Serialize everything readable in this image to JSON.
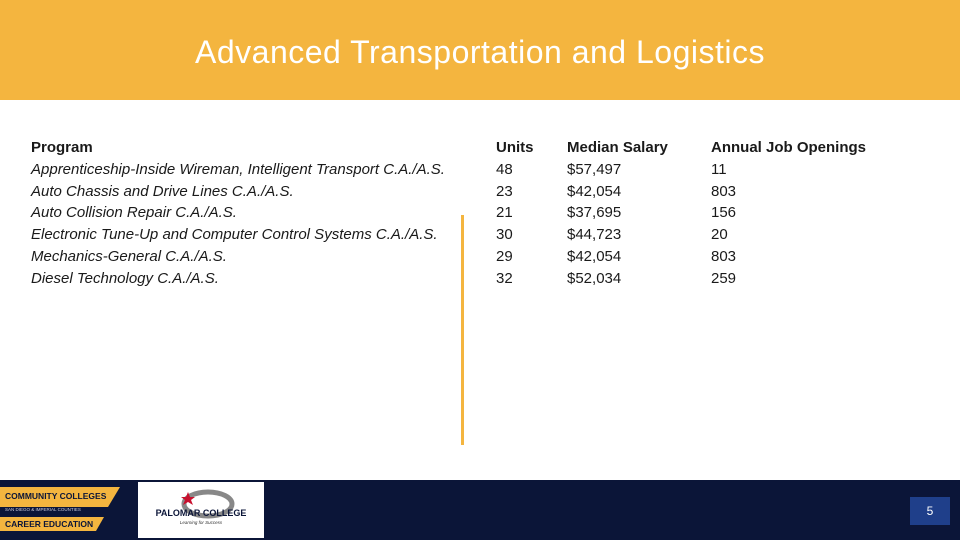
{
  "header": {
    "title": "Advanced Transportation and Logistics"
  },
  "table": {
    "columns": [
      "Program",
      "Units",
      "Median Salary",
      "Annual Job Openings"
    ],
    "rows": [
      [
        "Apprenticeship-Inside Wireman, Intelligent Transport C.A./A.S.",
        "48",
        "$57,497",
        "11"
      ],
      [
        "Auto Chassis and Drive Lines C.A./A.S.",
        "23",
        "$42,054",
        "803"
      ],
      [
        "Auto Collision Repair C.A./A.S.",
        "21",
        "$37,695",
        "156"
      ],
      [
        "Electronic Tune-Up and Computer Control Systems C.A./A.S.",
        "30",
        "$44,723",
        "20"
      ],
      [
        "Mechanics-General C.A./A.S.",
        "29",
        "$42,054",
        "803"
      ],
      [
        "Diesel Technology C.A./A.S.",
        "32",
        "$52,034",
        "259"
      ]
    ]
  },
  "footer": {
    "logo_left": [
      "COMMUNITY COLLEGES",
      "SAN DIEGO & IMPERIAL COUNTIES",
      "CAREER EDUCATION"
    ],
    "logo_right": {
      "name": "PALOMAR COLLEGE",
      "tagline": "Learning for Success"
    },
    "page_number": "5"
  }
}
